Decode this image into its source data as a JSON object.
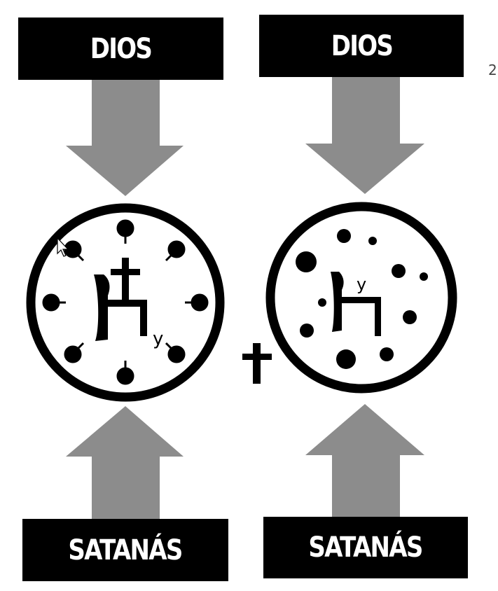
{
  "page_number": "2",
  "labels": {
    "top_left": "DIOS",
    "top_right": "DIOS",
    "bottom_left": "SATANÁS",
    "bottom_right": "SATANÁS"
  },
  "circle_left": {
    "sup_label": "y"
  },
  "circle_right": {
    "sup_label": "y"
  },
  "colors": {
    "box": "#000000",
    "arrow": "#8c8c8c",
    "ink": "#000000"
  }
}
